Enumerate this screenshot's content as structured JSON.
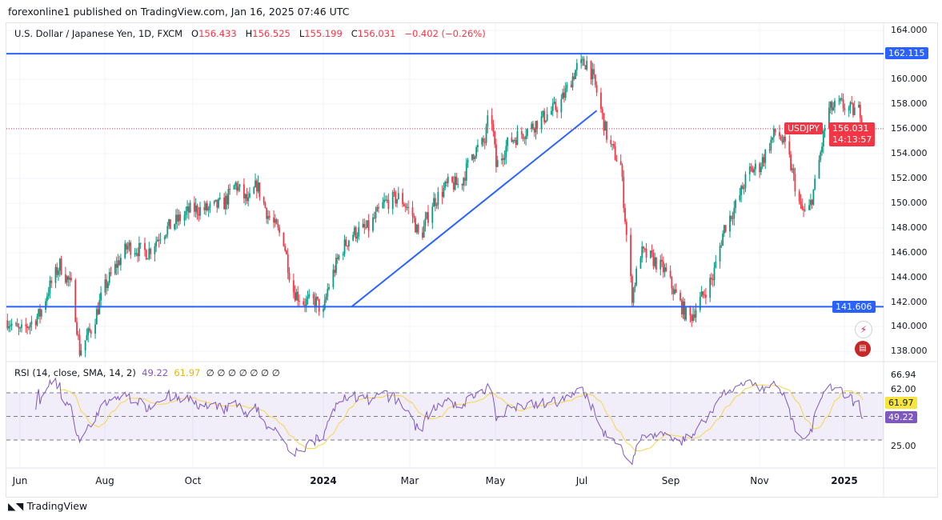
{
  "header": {
    "published": "forexonline1 published on TradingView.com, Jan 16, 2025 07:46 UTC"
  },
  "legend": {
    "symbol": "U.S. Dollar / Japanese Yen, 1D, FXCM",
    "o_label": "O",
    "o": "156.433",
    "h_label": "H",
    "h": "156.525",
    "l_label": "L",
    "l": "155.199",
    "c_label": "C",
    "c": "156.031",
    "change": "−0.402 (−0.26%)"
  },
  "price_axis": [
    "164.000",
    "160.000",
    "158.000",
    "156.000",
    "154.000",
    "152.000",
    "150.000",
    "148.000",
    "146.000",
    "144.000",
    "142.000",
    "140.000",
    "138.000"
  ],
  "tags": {
    "resistance": "162.115",
    "support": "141.606",
    "symbol": "USDJPY",
    "last": "156.031",
    "countdown": "14:13:57"
  },
  "rsi": {
    "legend": "RSI (14, close, SMA, 14, 2)",
    "rsi_value": "49.22",
    "sma_value": "61.97",
    "axis": [
      "66.94",
      "62.00",
      "25.00"
    ],
    "symbols": "∅ ∅ ∅ ∅ ∅ ∅ ∅"
  },
  "time_axis": [
    "Jun",
    "Aug",
    "Oct",
    "2024",
    "Mar",
    "May",
    "Jul",
    "Sep",
    "Nov",
    "2025"
  ],
  "footer": {
    "brand": "TradingView"
  },
  "colors": {
    "up": "#089981",
    "down": "#f23645",
    "lines": "#2962ff",
    "rsi": "#7e57c2",
    "rsi_sma": "#f7d44c"
  },
  "chart_data": {
    "type": "candlestick",
    "title": "U.S. Dollar / Japanese Yen, 1D, FXCM",
    "ylim": [
      137,
      165
    ],
    "horizontal_lines": [
      162.115,
      141.606
    ],
    "trendline": [
      [
        "2024-01-21",
        141.606
      ],
      [
        "2024-07-12",
        157.5
      ]
    ],
    "approx_closes": [
      [
        "2023-05-23",
        140.5
      ],
      [
        "2023-06-01",
        139.5
      ],
      [
        "2023-06-15",
        141
      ],
      [
        "2023-06-21",
        143
      ],
      [
        "2023-06-29",
        145
      ],
      [
        "2023-07-08",
        143
      ],
      [
        "2023-07-13",
        138
      ],
      [
        "2023-07-22",
        140
      ],
      [
        "2023-07-30",
        143
      ],
      [
        "2023-08-08",
        145
      ],
      [
        "2023-08-16",
        146.5
      ],
      [
        "2023-08-30",
        146
      ],
      [
        "2023-09-08",
        147.5
      ],
      [
        "2023-09-19",
        148.5
      ],
      [
        "2023-09-30",
        149.5
      ],
      [
        "2023-10-12",
        149.5
      ],
      [
        "2023-10-23",
        150
      ],
      [
        "2023-10-31",
        151.5
      ],
      [
        "2023-11-09",
        150
      ],
      [
        "2023-11-15",
        151.5
      ],
      [
        "2023-11-23",
        149
      ],
      [
        "2023-12-04",
        147
      ],
      [
        "2023-12-10",
        143
      ],
      [
        "2023-12-18",
        142
      ],
      [
        "2023-12-27",
        142
      ],
      [
        "2024-01-01",
        141
      ],
      [
        "2024-01-04",
        143
      ],
      [
        "2024-01-13",
        146
      ],
      [
        "2024-01-21",
        147.5
      ],
      [
        "2024-02-02",
        148
      ],
      [
        "2024-02-13",
        150
      ],
      [
        "2024-02-24",
        150.5
      ],
      [
        "2024-03-04",
        149
      ],
      [
        "2024-03-09",
        147
      ],
      [
        "2024-03-18",
        150
      ],
      [
        "2024-03-29",
        151.5
      ],
      [
        "2024-04-07",
        151.5
      ],
      [
        "2024-04-15",
        154
      ],
      [
        "2024-04-24",
        155
      ],
      [
        "2024-04-28",
        158
      ],
      [
        "2024-05-02",
        153
      ],
      [
        "2024-05-11",
        155
      ],
      [
        "2024-05-25",
        156
      ],
      [
        "2024-06-05",
        157
      ],
      [
        "2024-06-16",
        158
      ],
      [
        "2024-06-28",
        161
      ],
      [
        "2024-07-06",
        161.5
      ],
      [
        "2024-07-12",
        159
      ],
      [
        "2024-07-20",
        155
      ],
      [
        "2024-07-29",
        153
      ],
      [
        "2024-08-03",
        146
      ],
      [
        "2024-08-06",
        142.5
      ],
      [
        "2024-08-12",
        146
      ],
      [
        "2024-08-20",
        145.5
      ],
      [
        "2024-08-29",
        144.5
      ],
      [
        "2024-09-06",
        142.5
      ],
      [
        "2024-09-15",
        140.5
      ],
      [
        "2024-09-20",
        141.5
      ],
      [
        "2024-10-02",
        144
      ],
      [
        "2024-10-10",
        148
      ],
      [
        "2024-10-19",
        150
      ],
      [
        "2024-10-27",
        152.5
      ],
      [
        "2024-11-04",
        153
      ],
      [
        "2024-11-16",
        156
      ],
      [
        "2024-11-24",
        154
      ],
      [
        "2024-12-03",
        149.5
      ],
      [
        "2024-12-08",
        149
      ],
      [
        "2024-12-14",
        152
      ],
      [
        "2024-12-22",
        157.5
      ],
      [
        "2024-12-31",
        158
      ],
      [
        "2025-01-08",
        157.5
      ],
      [
        "2025-01-14",
        157.5
      ],
      [
        "2025-01-16",
        156.031
      ]
    ]
  }
}
